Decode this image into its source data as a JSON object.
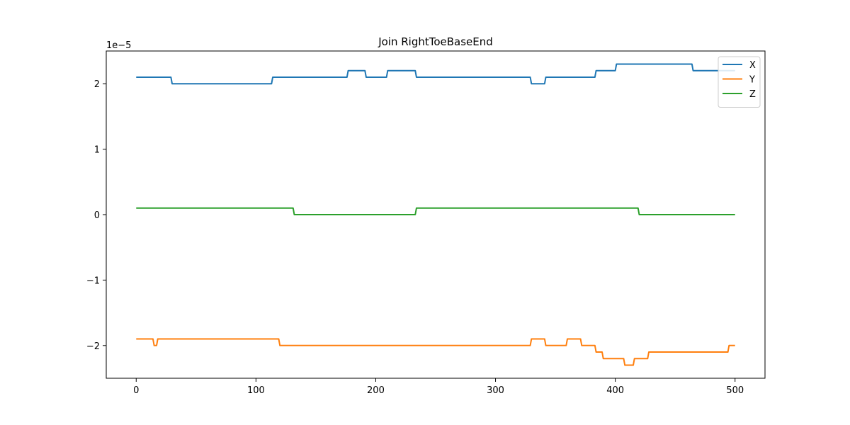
{
  "chart_data": {
    "type": "line",
    "title": "Join RightToeBaseEnd",
    "xlabel": "",
    "ylabel": "",
    "scale_label": "1e−5",
    "xlim": [
      -25,
      525
    ],
    "ylim": [
      -2.5,
      2.5
    ],
    "xticks": [
      0,
      100,
      200,
      300,
      400,
      500
    ],
    "xtick_labels": [
      "0",
      "100",
      "200",
      "300",
      "400",
      "500"
    ],
    "yticks": [
      -2,
      -1,
      0,
      1,
      2
    ],
    "ytick_labels": [
      "−2",
      "−1",
      "0",
      "1",
      "2"
    ],
    "legend_position": "top-right",
    "series": [
      {
        "name": "X",
        "color": "#1f77b4",
        "points": [
          [
            0,
            2.1
          ],
          [
            29,
            2.1
          ],
          [
            30,
            2.0
          ],
          [
            113,
            2.0
          ],
          [
            114,
            2.1
          ],
          [
            176,
            2.1
          ],
          [
            177,
            2.2
          ],
          [
            191,
            2.2
          ],
          [
            192,
            2.1
          ],
          [
            209,
            2.1
          ],
          [
            210,
            2.2
          ],
          [
            233,
            2.2
          ],
          [
            234,
            2.1
          ],
          [
            329,
            2.1
          ],
          [
            330,
            2.0
          ],
          [
            341,
            2.0
          ],
          [
            342,
            2.1
          ],
          [
            383,
            2.1
          ],
          [
            384,
            2.2
          ],
          [
            400,
            2.2
          ],
          [
            401,
            2.3
          ],
          [
            464,
            2.3
          ],
          [
            465,
            2.2
          ],
          [
            500,
            2.2
          ]
        ]
      },
      {
        "name": "Y",
        "color": "#ff7f0e",
        "points": [
          [
            0,
            -1.9
          ],
          [
            14,
            -1.9
          ],
          [
            15,
            -2.0
          ],
          [
            17,
            -2.0
          ],
          [
            18,
            -1.9
          ],
          [
            119,
            -1.9
          ],
          [
            120,
            -2.0
          ],
          [
            329,
            -2.0
          ],
          [
            330,
            -1.9
          ],
          [
            341,
            -1.9
          ],
          [
            342,
            -2.0
          ],
          [
            359,
            -2.0
          ],
          [
            360,
            -1.9
          ],
          [
            371,
            -1.9
          ],
          [
            372,
            -2.0
          ],
          [
            383,
            -2.0
          ],
          [
            384,
            -2.1
          ],
          [
            389,
            -2.1
          ],
          [
            390,
            -2.2
          ],
          [
            407,
            -2.2
          ],
          [
            408,
            -2.3
          ],
          [
            415,
            -2.3
          ],
          [
            416,
            -2.2
          ],
          [
            427,
            -2.2
          ],
          [
            428,
            -2.1
          ],
          [
            494,
            -2.1
          ],
          [
            495,
            -2.0
          ],
          [
            500,
            -2.0
          ]
        ]
      },
      {
        "name": "Z",
        "color": "#2ca02c",
        "points": [
          [
            0,
            0.1
          ],
          [
            131,
            0.1
          ],
          [
            132,
            0.0
          ],
          [
            233,
            0.0
          ],
          [
            234,
            0.1
          ],
          [
            419,
            0.1
          ],
          [
            420,
            0.0
          ],
          [
            500,
            0.0
          ]
        ]
      }
    ]
  }
}
